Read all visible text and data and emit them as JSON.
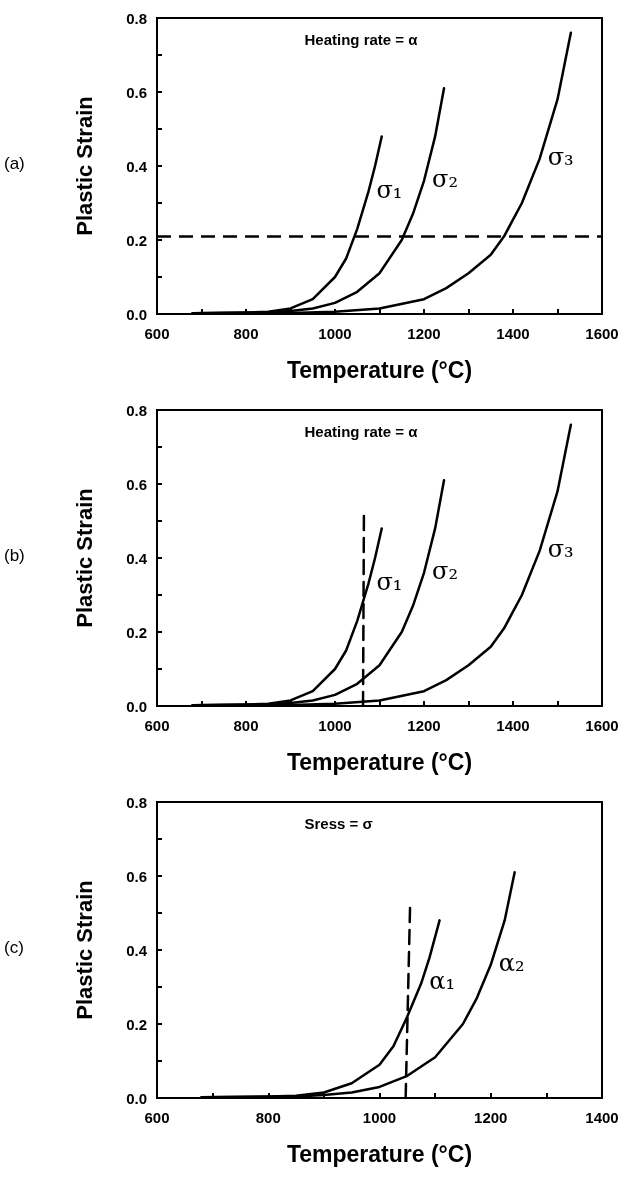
{
  "chart_data": [
    {
      "type": "line",
      "xlabel": "Temperature (°C)",
      "ylabel": "Plastic Strain",
      "annotations": [
        "(a)",
        "Heating rate = α"
      ],
      "marker": "none",
      "grid": false,
      "legend": false,
      "xlim": [
        600,
        1600
      ],
      "xticks": [
        600,
        {
          "value": 700,
          "label": null
        },
        800,
        {
          "value": 900,
          "label": null
        },
        1000,
        {
          "value": 1100,
          "label": null
        },
        1200,
        {
          "value": 1300,
          "label": null
        },
        1400,
        {
          "value": 1500,
          "label": null
        },
        1600
      ],
      "ylim": [
        0,
        0.8
      ],
      "yticks": [
        "0.0",
        {
          "value": 0.1,
          "label": null
        },
        0.2,
        {
          "value": 0.3,
          "label": null
        },
        0.4,
        {
          "value": 0.5,
          "label": null
        },
        0.6,
        {
          "value": 0.7,
          "label": null
        },
        0.8
      ],
      "series": [
        {
          "name": "σ₁",
          "color": "#000000",
          "x": [
            680,
            800,
            850,
            900,
            950,
            1000,
            1025,
            1050,
            1075,
            1090,
            1105
          ],
          "values": [
            0.002,
            0.004,
            0.006,
            0.015,
            0.04,
            0.1,
            0.15,
            0.23,
            0.33,
            0.4,
            0.48
          ]
        },
        {
          "name": "σ₂",
          "color": "#000000",
          "x": [
            680,
            850,
            900,
            950,
            1000,
            1050,
            1100,
            1150,
            1175,
            1200,
            1225,
            1245
          ],
          "values": [
            0.002,
            0.004,
            0.008,
            0.015,
            0.03,
            0.06,
            0.11,
            0.2,
            0.27,
            0.36,
            0.48,
            0.61
          ]
        },
        {
          "name": "σ₃",
          "color": "#000000",
          "x": [
            680,
            900,
            1000,
            1100,
            1200,
            1250,
            1300,
            1350,
            1380,
            1420,
            1460,
            1500,
            1530
          ],
          "values": [
            0.002,
            0.003,
            0.006,
            0.015,
            0.04,
            0.07,
            0.11,
            0.16,
            0.21,
            0.3,
            0.42,
            0.58,
            0.76
          ]
        }
      ],
      "ref_lines": [
        {
          "axis": "y",
          "value": 0.21,
          "line_style": "dashed",
          "color": "#000000"
        }
      ]
    },
    {
      "type": "line",
      "xlabel": "Temperature (°C)",
      "ylabel": "Plastic Strain",
      "annotations": [
        "(b)",
        "Heating rate = α"
      ],
      "marker": "none",
      "grid": false,
      "legend": false,
      "xlim": [
        600,
        1600
      ],
      "xticks": [
        600,
        {
          "value": 700,
          "label": null
        },
        800,
        {
          "value": 900,
          "label": null
        },
        1000,
        {
          "value": 1100,
          "label": null
        },
        1200,
        {
          "value": 1300,
          "label": null
        },
        1400,
        {
          "value": 1500,
          "label": null
        },
        1600
      ],
      "ylim": [
        0,
        0.8
      ],
      "yticks": [
        "0.0",
        {
          "value": 0.1,
          "label": null
        },
        0.2,
        {
          "value": 0.3,
          "label": null
        },
        0.4,
        {
          "value": 0.5,
          "label": null
        },
        0.6,
        {
          "value": 0.7,
          "label": null
        },
        0.8
      ],
      "series": [
        {
          "name": "σ₁",
          "color": "#000000",
          "x": [
            680,
            800,
            850,
            900,
            950,
            1000,
            1025,
            1050,
            1075,
            1090,
            1105
          ],
          "values": [
            0.002,
            0.004,
            0.006,
            0.015,
            0.04,
            0.1,
            0.15,
            0.23,
            0.33,
            0.4,
            0.48
          ]
        },
        {
          "name": "σ₂",
          "color": "#000000",
          "x": [
            680,
            850,
            900,
            950,
            1000,
            1050,
            1100,
            1150,
            1175,
            1200,
            1225,
            1245
          ],
          "values": [
            0.002,
            0.004,
            0.008,
            0.015,
            0.03,
            0.06,
            0.11,
            0.2,
            0.27,
            0.36,
            0.48,
            0.61
          ]
        },
        {
          "name": "σ₃",
          "color": "#000000",
          "x": [
            680,
            900,
            1000,
            1100,
            1200,
            1250,
            1300,
            1350,
            1380,
            1420,
            1460,
            1500,
            1530
          ],
          "values": [
            0.002,
            0.003,
            0.006,
            0.015,
            0.04,
            0.07,
            0.11,
            0.16,
            0.21,
            0.3,
            0.42,
            0.58,
            0.76
          ]
        },
        {
          "color": "#000000",
          "line_style": "dashed",
          "x": [
            1063,
            1065
          ],
          "values": [
            0,
            0.52
          ]
        }
      ]
    },
    {
      "type": "line",
      "xlabel": "Temperature (°C)",
      "ylabel": "Plastic Strain",
      "annotations": [
        "(c)",
        "Sress = σ"
      ],
      "marker": "none",
      "grid": false,
      "legend": false,
      "xlim": [
        600,
        1400
      ],
      "xticks": [
        600,
        {
          "value": 700,
          "label": null
        },
        800,
        {
          "value": 900,
          "label": null
        },
        1000,
        {
          "value": 1100,
          "label": null
        },
        1200,
        {
          "value": 1300,
          "label": null
        },
        1400
      ],
      "ylim": [
        0,
        0.8
      ],
      "yticks": [
        "0.0",
        {
          "value": 0.1,
          "label": null
        },
        0.2,
        {
          "value": 0.3,
          "label": null
        },
        0.4,
        {
          "value": 0.5,
          "label": null
        },
        0.6,
        {
          "value": 0.7,
          "label": null
        },
        0.8
      ],
      "series": [
        {
          "name": "α₁",
          "color": "#000000",
          "x": [
            680,
            800,
            850,
            900,
            950,
            1000,
            1025,
            1050,
            1075,
            1090,
            1108
          ],
          "values": [
            0.002,
            0.004,
            0.006,
            0.015,
            0.04,
            0.09,
            0.14,
            0.22,
            0.31,
            0.38,
            0.48
          ]
        },
        {
          "name": "α₂",
          "color": "#000000",
          "x": [
            680,
            850,
            900,
            950,
            1000,
            1050,
            1100,
            1150,
            1175,
            1200,
            1225,
            1243
          ],
          "values": [
            0.002,
            0.004,
            0.008,
            0.015,
            0.03,
            0.06,
            0.11,
            0.2,
            0.27,
            0.36,
            0.48,
            0.61
          ]
        },
        {
          "color": "#000000",
          "line_style": "dashed",
          "x": [
            1047,
            1055
          ],
          "values": [
            0,
            0.52
          ]
        }
      ]
    }
  ]
}
